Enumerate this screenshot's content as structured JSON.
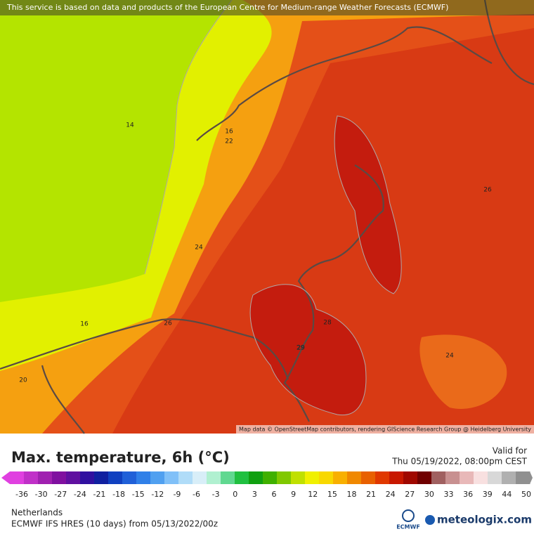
{
  "map": {
    "attribution_top": "This service is based on data and products of the European Centre for Medium-range Weather Forecasts (ECMWF)",
    "attribution_bottom": "Map data © OpenStreetMap contributors, rendering GIScience Research Group @ Heidelberg University",
    "contour_labels": [
      "14",
      "16",
      "22",
      "26",
      "24",
      "26",
      "28",
      "29",
      "16",
      "20",
      "24"
    ]
  },
  "legend": {
    "title": "Max. temperature, 6h (°C)",
    "valid_label": "Valid for",
    "valid_time": "Thu 05/19/2022, 08:00pm CEST",
    "ticks": [
      -36,
      -30,
      -27,
      -24,
      -21,
      -18,
      -15,
      -12,
      -9,
      -6,
      -3,
      0,
      3,
      6,
      9,
      12,
      15,
      18,
      21,
      24,
      27,
      30,
      33,
      36,
      39,
      44,
      50
    ]
  },
  "footer": {
    "region": "Netherlands",
    "model": "ECMWF IFS HRES (10 days) from 05/13/2022/00z",
    "ecmwf": "ECMWF",
    "brand": "meteologix.com"
  }
}
